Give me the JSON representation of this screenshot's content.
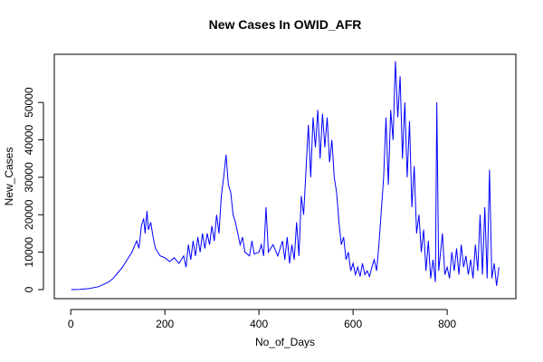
{
  "chart_data": {
    "type": "line",
    "title": "New Cases In OWID_AFR",
    "x_label": "No_of_Days",
    "y_label": "New_Cases",
    "x": [
      1,
      20,
      40,
      60,
      80,
      90,
      100,
      110,
      120,
      130,
      140,
      145,
      150,
      155,
      158,
      162,
      165,
      170,
      175,
      180,
      190,
      200,
      210,
      220,
      230,
      240,
      245,
      250,
      255,
      260,
      265,
      270,
      275,
      280,
      285,
      290,
      295,
      300,
      305,
      310,
      315,
      320,
      325,
      330,
      335,
      340,
      345,
      350,
      355,
      360,
      365,
      370,
      380,
      385,
      390,
      400,
      405,
      410,
      415,
      420,
      430,
      440,
      450,
      455,
      460,
      465,
      470,
      475,
      480,
      485,
      490,
      495,
      500,
      505,
      510,
      515,
      520,
      525,
      530,
      535,
      540,
      545,
      550,
      555,
      560,
      565,
      570,
      575,
      580,
      585,
      590,
      595,
      600,
      605,
      610,
      615,
      620,
      625,
      630,
      635,
      640,
      645,
      650,
      655,
      660,
      665,
      670,
      675,
      680,
      685,
      690,
      695,
      700,
      705,
      710,
      715,
      720,
      725,
      730,
      735,
      740,
      745,
      750,
      755,
      760,
      765,
      770,
      775,
      778,
      782,
      790,
      795,
      800,
      805,
      810,
      815,
      820,
      825,
      830,
      835,
      840,
      845,
      850,
      855,
      860,
      865,
      870,
      875,
      880,
      885,
      890,
      895,
      900,
      905,
      910
    ],
    "series": [
      {
        "name": "New_Cases",
        "color": "#0000ff",
        "values": [
          0,
          50,
          300,
          800,
          2000,
          3000,
          4500,
          6000,
          8000,
          10000,
          13000,
          11000,
          17000,
          19000,
          15000,
          21000,
          16000,
          18000,
          14000,
          11000,
          9000,
          8500,
          7500,
          8500,
          7000,
          9000,
          6000,
          12000,
          8000,
          13000,
          9000,
          14000,
          10000,
          15000,
          11000,
          15000,
          12000,
          17000,
          13000,
          20000,
          15000,
          25000,
          30000,
          36000,
          28000,
          26000,
          20000,
          18000,
          15000,
          12000,
          14000,
          10000,
          9000,
          13000,
          9500,
          10000,
          12000,
          9000,
          22000,
          10000,
          12000,
          9000,
          13000,
          8000,
          14000,
          7000,
          12000,
          8000,
          18000,
          9000,
          25000,
          20000,
          32000,
          44000,
          30000,
          46000,
          38000,
          48000,
          35000,
          47000,
          38000,
          46000,
          34000,
          40000,
          30000,
          26000,
          18000,
          12000,
          14000,
          8000,
          10000,
          5000,
          7000,
          4000,
          6000,
          3500,
          7000,
          4000,
          5000,
          3500,
          6000,
          8000,
          5000,
          12000,
          21000,
          30000,
          46000,
          28000,
          48000,
          40000,
          61000,
          46000,
          57000,
          35000,
          50000,
          30000,
          45000,
          22000,
          33000,
          15000,
          20000,
          10000,
          16000,
          5000,
          13000,
          3000,
          8000,
          2000,
          50000,
          5000,
          15000,
          4000,
          6000,
          3000,
          10000,
          5000,
          11000,
          4000,
          12000,
          6000,
          9000,
          4000,
          8000,
          3000,
          12000,
          5000,
          20000,
          4000,
          22000,
          3000,
          32000,
          3000,
          7000,
          1000,
          6000
        ]
      }
    ],
    "xlim": [
      -35,
      946
    ],
    "ylim": [
      -2420,
      62860
    ],
    "xticks": [
      0,
      200,
      400,
      600,
      800
    ],
    "yticks": [
      0,
      10000,
      20000,
      30000,
      40000,
      50000
    ]
  }
}
